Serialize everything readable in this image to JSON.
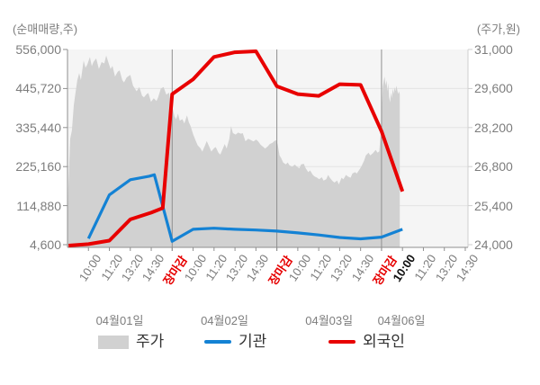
{
  "chart_data": {
    "type": "mixed",
    "left_axis": {
      "label": "(순매매량,주)",
      "tick_labels": [
        "556,000",
        "445,720",
        "335,440",
        "225,160",
        "114,880",
        "4,600"
      ],
      "max": 556000,
      "min": 4600
    },
    "right_axis": {
      "label": "(주가,원)",
      "tick_labels": [
        "31,000",
        "29,600",
        "28,200",
        "26,800",
        "25,400",
        "24,000"
      ],
      "max": 31000,
      "min": 24000
    },
    "x_axis": {
      "time_labels": [
        {
          "text": "10:00"
        },
        {
          "text": "11:20"
        },
        {
          "text": "13:20"
        },
        {
          "text": "14:30"
        },
        {
          "text": "장마감",
          "style": "close"
        },
        {
          "text": "10:00"
        },
        {
          "text": "11:20"
        },
        {
          "text": "13:20"
        },
        {
          "text": "14:30"
        },
        {
          "text": "장마감",
          "style": "close"
        },
        {
          "text": "10:00"
        },
        {
          "text": "11:20"
        },
        {
          "text": "13:20"
        },
        {
          "text": "14:30"
        },
        {
          "text": "장마감",
          "style": "close"
        },
        {
          "text": "10:00",
          "style": "current"
        },
        {
          "text": "11:20"
        },
        {
          "text": "13:20"
        },
        {
          "text": "14:30"
        }
      ],
      "date_labels": [
        "04월01일",
        "04월02일",
        "04월03일",
        "04월06일"
      ]
    },
    "legend": [
      {
        "label": "주가",
        "type": "area",
        "color": "#d1d1d1"
      },
      {
        "label": "기관",
        "type": "line",
        "color": "#1482d4"
      },
      {
        "label": "외국인",
        "type": "line",
        "color": "#e80000"
      }
    ],
    "colors": {
      "plot_bg": "#f5f5f5",
      "grid": "#e4e4e4",
      "axis": "#8f8f8f",
      "area": "#d1d1d1",
      "blue": "#1482d4",
      "red": "#e80000"
    },
    "series": [
      {
        "name": "주가",
        "type": "area",
        "axis": "right",
        "color": "#d1d1d1",
        "points": [
          [
            -1,
            24050
          ],
          [
            -0.96,
            26000
          ],
          [
            -0.87,
            27800
          ],
          [
            -0.79,
            28100
          ],
          [
            -0.7,
            29000
          ],
          [
            -0.61,
            29500
          ],
          [
            -0.53,
            29900
          ],
          [
            -0.44,
            30150
          ],
          [
            -0.36,
            29900
          ],
          [
            -0.23,
            30600
          ],
          [
            -0.14,
            30350
          ],
          [
            -0.06,
            30450
          ],
          [
            0.07,
            30730
          ],
          [
            0.16,
            30400
          ],
          [
            0.24,
            30550
          ],
          [
            0.37,
            30680
          ],
          [
            0.5,
            30300
          ],
          [
            0.63,
            30550
          ],
          [
            0.76,
            30500
          ],
          [
            0.85,
            30780
          ],
          [
            0.97,
            30500
          ],
          [
            1.06,
            30300
          ],
          [
            1.15,
            30410
          ],
          [
            1.27,
            30030
          ],
          [
            1.4,
            30200
          ],
          [
            1.49,
            30250
          ],
          [
            1.62,
            29900
          ],
          [
            1.7,
            29820
          ],
          [
            1.83,
            30000
          ],
          [
            2,
            30090
          ],
          [
            2.13,
            29700
          ],
          [
            2.3,
            29500
          ],
          [
            2.43,
            29650
          ],
          [
            2.56,
            29350
          ],
          [
            2.65,
            29280
          ],
          [
            2.78,
            29400
          ],
          [
            2.86,
            29440
          ],
          [
            2.99,
            29120
          ],
          [
            3.12,
            29250
          ],
          [
            3.25,
            29150
          ],
          [
            3.33,
            29280
          ],
          [
            3.46,
            29600
          ],
          [
            3.59,
            29650
          ],
          [
            3.72,
            29380
          ],
          [
            3.85,
            29450
          ],
          [
            3.94,
            29100
          ],
          [
            4.02,
            28900
          ],
          [
            4.11,
            28600
          ],
          [
            4.19,
            28500
          ],
          [
            4.28,
            28700
          ],
          [
            4.36,
            28450
          ],
          [
            4.49,
            28500
          ],
          [
            4.58,
            28350
          ],
          [
            4.71,
            28640
          ],
          [
            4.79,
            28400
          ],
          [
            4.88,
            28250
          ],
          [
            5.01,
            27940
          ],
          [
            5.14,
            27700
          ],
          [
            5.22,
            27560
          ],
          [
            5.35,
            27460
          ],
          [
            5.44,
            27340
          ],
          [
            5.57,
            27560
          ],
          [
            5.65,
            27720
          ],
          [
            5.78,
            27500
          ],
          [
            5.87,
            27340
          ],
          [
            6,
            27460
          ],
          [
            6.08,
            27500
          ],
          [
            6.21,
            27300
          ],
          [
            6.3,
            27230
          ],
          [
            6.42,
            27450
          ],
          [
            6.51,
            27610
          ],
          [
            6.6,
            27450
          ],
          [
            6.73,
            27800
          ],
          [
            6.81,
            28250
          ],
          [
            6.9,
            28000
          ],
          [
            7.03,
            27950
          ],
          [
            7.15,
            28020
          ],
          [
            7.28,
            27980
          ],
          [
            7.37,
            28000
          ],
          [
            7.5,
            27710
          ],
          [
            7.63,
            27800
          ],
          [
            7.76,
            27750
          ],
          [
            7.88,
            27700
          ],
          [
            8.01,
            27770
          ],
          [
            8.1,
            27710
          ],
          [
            8.23,
            27580
          ],
          [
            8.36,
            27500
          ],
          [
            8.44,
            27450
          ],
          [
            8.57,
            27530
          ],
          [
            8.66,
            27610
          ],
          [
            8.79,
            27650
          ],
          [
            8.87,
            27710
          ],
          [
            8.96,
            27750
          ],
          [
            9.04,
            27600
          ],
          [
            9.13,
            27200
          ],
          [
            9.21,
            27100
          ],
          [
            9.3,
            26950
          ],
          [
            9.43,
            26880
          ],
          [
            9.52,
            26950
          ],
          [
            9.6,
            26850
          ],
          [
            9.73,
            26800
          ],
          [
            9.86,
            26870
          ],
          [
            9.94,
            26810
          ],
          [
            10.07,
            26740
          ],
          [
            10.16,
            26880
          ],
          [
            10.29,
            26900
          ],
          [
            10.37,
            26750
          ],
          [
            10.5,
            26600
          ],
          [
            10.59,
            26660
          ],
          [
            10.72,
            26500
          ],
          [
            10.8,
            26450
          ],
          [
            10.93,
            26400
          ],
          [
            11.02,
            26350
          ],
          [
            11.15,
            26420
          ],
          [
            11.23,
            26300
          ],
          [
            11.36,
            26350
          ],
          [
            11.45,
            26500
          ],
          [
            11.53,
            26400
          ],
          [
            11.66,
            26280
          ],
          [
            11.75,
            26230
          ],
          [
            11.88,
            26300
          ],
          [
            11.96,
            26160
          ],
          [
            12.09,
            26400
          ],
          [
            12.18,
            26350
          ],
          [
            12.3,
            26500
          ],
          [
            12.39,
            26450
          ],
          [
            12.52,
            26400
          ],
          [
            12.61,
            26550
          ],
          [
            12.73,
            26600
          ],
          [
            12.82,
            26550
          ],
          [
            12.95,
            26700
          ],
          [
            13.03,
            26800
          ],
          [
            13.16,
            27000
          ],
          [
            13.25,
            27200
          ],
          [
            13.38,
            27300
          ],
          [
            13.46,
            27200
          ],
          [
            13.59,
            27280
          ],
          [
            13.72,
            27400
          ],
          [
            13.81,
            27300
          ],
          [
            13.89,
            27350
          ],
          [
            13.98,
            28200
          ],
          [
            14.02,
            29000
          ],
          [
            14.06,
            29650
          ],
          [
            14.11,
            29900
          ],
          [
            14.15,
            30030
          ],
          [
            14.19,
            29700
          ],
          [
            14.24,
            29900
          ],
          [
            14.28,
            29500
          ],
          [
            14.32,
            29800
          ],
          [
            14.36,
            29300
          ],
          [
            14.41,
            29100
          ],
          [
            14.45,
            29450
          ],
          [
            14.49,
            29250
          ],
          [
            14.54,
            29600
          ],
          [
            14.58,
            29400
          ],
          [
            14.62,
            29650
          ],
          [
            14.66,
            29500
          ],
          [
            14.71,
            29700
          ],
          [
            14.75,
            29550
          ],
          [
            14.79,
            29400
          ],
          [
            14.83,
            29500
          ],
          [
            14.87,
            29400
          ]
        ]
      },
      {
        "name": "기관",
        "type": "line",
        "axis": "left",
        "color": "#1482d4",
        "width": 3.2,
        "points": [
          [
            0,
            22000
          ],
          [
            1,
            145000
          ],
          [
            2,
            188000
          ],
          [
            2.9,
            198000
          ],
          [
            3.15,
            202000
          ],
          [
            4,
            14000
          ],
          [
            5,
            48000
          ],
          [
            6,
            51000
          ],
          [
            7,
            48000
          ],
          [
            8,
            46000
          ],
          [
            9,
            43000
          ],
          [
            10,
            38000
          ],
          [
            11,
            32000
          ],
          [
            12,
            25000
          ],
          [
            13,
            21000
          ],
          [
            14,
            26000
          ],
          [
            15,
            48000
          ]
        ]
      },
      {
        "name": "외국인",
        "type": "line",
        "axis": "left",
        "color": "#e80000",
        "width": 4,
        "points": [
          [
            -0.95,
            2000
          ],
          [
            0,
            6000
          ],
          [
            1,
            16000
          ],
          [
            2,
            76000
          ],
          [
            3,
            95000
          ],
          [
            3.55,
            108000
          ],
          [
            4,
            430000
          ],
          [
            5,
            472000
          ],
          [
            6,
            535000
          ],
          [
            7,
            548000
          ],
          [
            8,
            551000
          ],
          [
            9,
            452000
          ],
          [
            10,
            430000
          ],
          [
            11,
            425000
          ],
          [
            12,
            458000
          ],
          [
            13,
            456000
          ],
          [
            14,
            325000
          ],
          [
            15,
            155000
          ]
        ]
      }
    ]
  }
}
